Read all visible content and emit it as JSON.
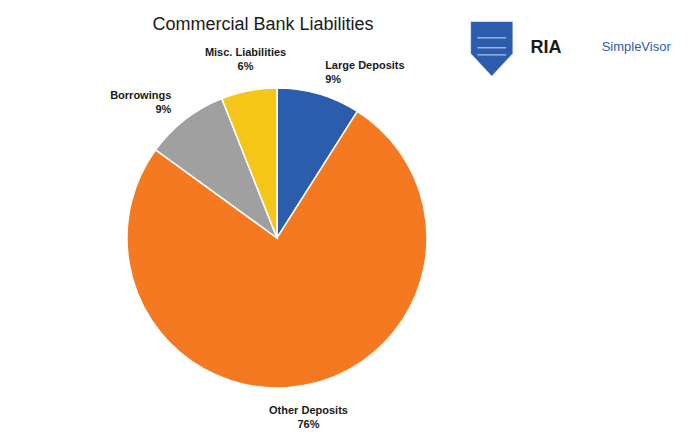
{
  "chart_data": {
    "type": "pie",
    "title": "Commercial Bank Liabilities",
    "categories": [
      "Large Deposits",
      "Other Deposits",
      "Borrowings",
      "Misc. Liabilities"
    ],
    "values": [
      9,
      76,
      9,
      6
    ],
    "value_labels": [
      "9%",
      "76%",
      "9%",
      "6%"
    ],
    "data_labels": true,
    "colors": [
      "#2b5cad",
      "#f47920",
      "#a0a0a0",
      "#f5c518"
    ],
    "annotations": [
      {
        "text": "RIA",
        "color": "#1a1a1a"
      },
      {
        "text": "SimpleVisor",
        "color": "#2b5cad"
      }
    ]
  }
}
